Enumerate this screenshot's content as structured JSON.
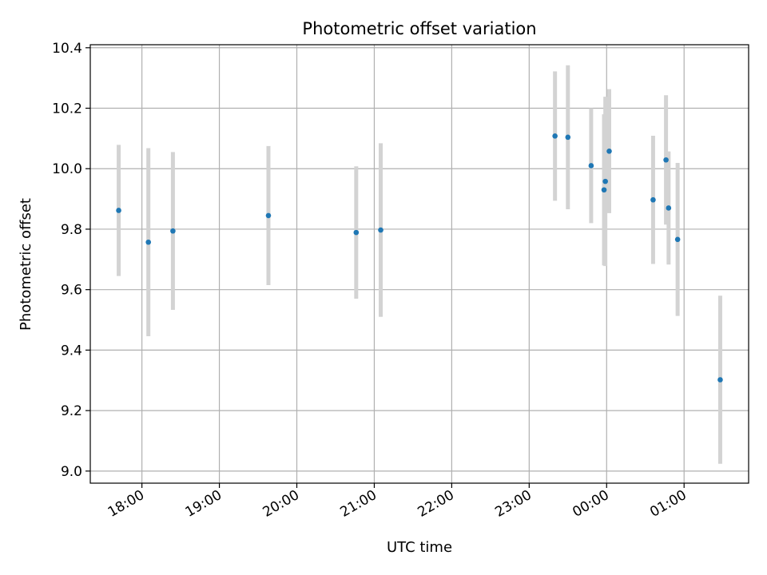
{
  "chart_data": {
    "type": "scatter",
    "title": "Photometric offset variation",
    "xlabel": "UTC time",
    "ylabel": "Photometric offset",
    "x_axis": {
      "kind": "time",
      "unit": "hours (UTC, continuing past midnight)",
      "range": [
        "17:20",
        "01:50"
      ],
      "ticks": [
        "18:00",
        "19:00",
        "20:00",
        "21:00",
        "22:00",
        "23:00",
        "00:00",
        "01:00"
      ]
    },
    "y_axis": {
      "range": [
        8.96,
        10.41
      ],
      "ticks": [
        "9.0",
        "9.2",
        "9.4",
        "9.6",
        "9.8",
        "10.0",
        "10.2",
        "10.4"
      ]
    },
    "grid": true,
    "legend": "none",
    "marker_color": "#1f77b4",
    "errorbar_color": "#d3d3d3",
    "points": [
      {
        "time": "17:42",
        "y": 9.862,
        "err": 0.217
      },
      {
        "time": "18:05",
        "y": 9.757,
        "err": 0.311
      },
      {
        "time": "18:24",
        "y": 9.794,
        "err": 0.261
      },
      {
        "time": "19:38",
        "y": 9.845,
        "err": 0.23
      },
      {
        "time": "20:46",
        "y": 9.789,
        "err": 0.219
      },
      {
        "time": "21:05",
        "y": 9.797,
        "err": 0.287
      },
      {
        "time": "23:20",
        "y": 10.108,
        "err": 0.214
      },
      {
        "time": "23:30",
        "y": 10.104,
        "err": 0.238
      },
      {
        "time": "23:48",
        "y": 10.01,
        "err": 0.19
      },
      {
        "time": "23:58",
        "y": 9.93,
        "err": 0.25
      },
      {
        "time": "23:59",
        "y": 9.958,
        "err": 0.28
      },
      {
        "time": "00:02",
        "y": 10.058,
        "err": 0.205
      },
      {
        "time": "00:36",
        "y": 9.897,
        "err": 0.212
      },
      {
        "time": "00:46",
        "y": 10.029,
        "err": 0.214
      },
      {
        "time": "00:48",
        "y": 9.87,
        "err": 0.187
      },
      {
        "time": "00:55",
        "y": 9.766,
        "err": 0.253
      },
      {
        "time": "01:28",
        "y": 9.302,
        "err": 0.278
      }
    ]
  }
}
